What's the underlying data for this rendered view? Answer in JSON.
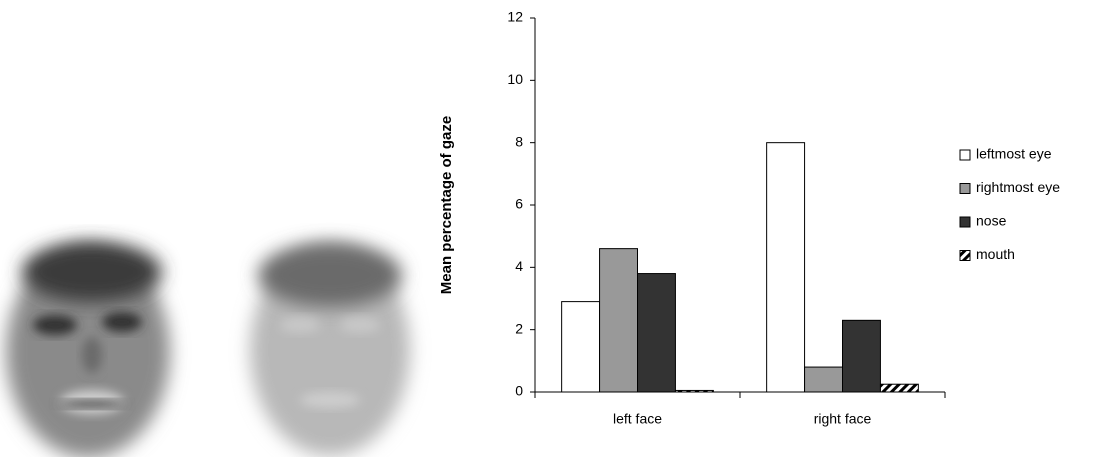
{
  "chart_data": {
    "type": "bar",
    "y_label": "Mean percentage of gaze",
    "categories": [
      "left face",
      "right face"
    ],
    "series": [
      {
        "name": "leftmost eye",
        "color": "#ffffff",
        "values": [
          2.9,
          8.0
        ]
      },
      {
        "name": "rightmost eye",
        "color": "#999999",
        "values": [
          4.6,
          0.8
        ]
      },
      {
        "name": "nose",
        "color": "#333333",
        "values": [
          3.8,
          2.3
        ]
      },
      {
        "name": "mouth",
        "color": "#ffffff",
        "hatch": true,
        "values": [
          0.05,
          0.25
        ]
      }
    ],
    "ylim": [
      0,
      12
    ],
    "yticks": [
      0,
      2,
      4,
      6,
      8,
      10,
      12
    ],
    "legend": "right"
  }
}
